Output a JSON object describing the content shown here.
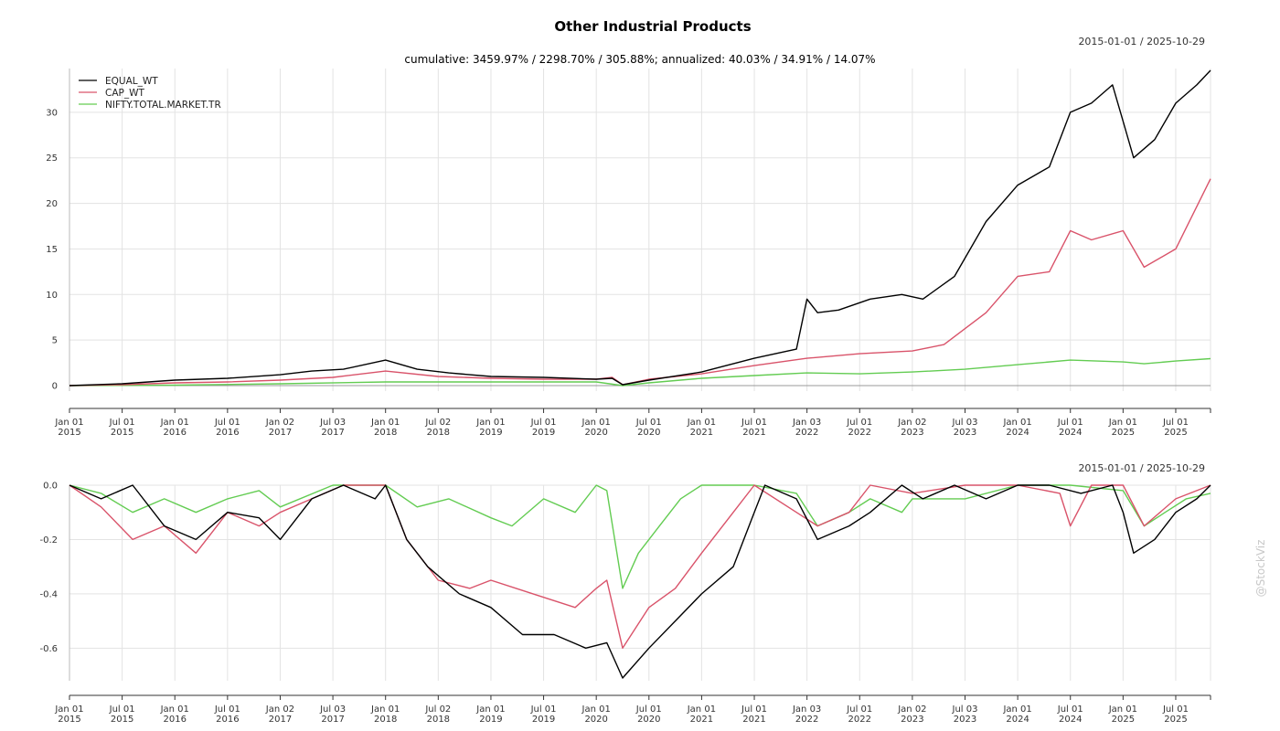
{
  "chart_data": {
    "type": "line",
    "title": "Other Industrial Products",
    "subtitle": "cumulative: 3459.97% / 2298.70% / 305.88%; annualized: 40.03% / 34.91% / 14.07%",
    "date_range": "2015-01-01 / 2025-10-29",
    "watermark": "@StockViz",
    "legend_position": "top-left",
    "grid": true,
    "x_ticks": [
      "Jan 01\n2015",
      "Jul 01\n2015",
      "Jan 01\n2016",
      "Jul 01\n2016",
      "Jan 02\n2017",
      "Jul 03\n2017",
      "Jan 01\n2018",
      "Jul 02\n2018",
      "Jan 01\n2019",
      "Jul 01\n2019",
      "Jan 01\n2020",
      "Jul 01\n2020",
      "Jan 01\n2021",
      "Jul 01\n2021",
      "Jan 03\n2022",
      "Jul 01\n2022",
      "Jan 02\n2023",
      "Jul 03\n2023",
      "Jan 01\n2024",
      "Jul 01\n2024",
      "Jan 01\n2025",
      "Jul 01\n2025"
    ],
    "x_range": [
      2015.0,
      2025.83
    ],
    "panels": [
      {
        "name": "cumulative",
        "ylim": [
          -0.6,
          34.8
        ],
        "y_ticks": [
          0,
          5,
          10,
          15,
          20,
          25,
          30
        ],
        "series": [
          {
            "name": "EQUAL_WT",
            "color": "#000000",
            "x": [
              2015.0,
              2015.5,
              2016.0,
              2016.5,
              2017.0,
              2017.3,
              2017.6,
              2018.0,
              2018.3,
              2018.6,
              2019.0,
              2019.5,
              2020.0,
              2020.15,
              2020.25,
              2020.5,
              2021.0,
              2021.5,
              2021.9,
              2022.0,
              2022.1,
              2022.3,
              2022.6,
              2022.9,
              2023.1,
              2023.4,
              2023.7,
              2024.0,
              2024.3,
              2024.5,
              2024.7,
              2024.9,
              2025.0,
              2025.1,
              2025.3,
              2025.5,
              2025.7,
              2025.83
            ],
            "y": [
              0,
              0.2,
              0.6,
              0.8,
              1.2,
              1.6,
              1.8,
              2.8,
              1.8,
              1.4,
              1.0,
              0.9,
              0.7,
              0.8,
              0.1,
              0.6,
              1.5,
              3.0,
              4.0,
              9.5,
              8.0,
              8.3,
              9.5,
              10.0,
              9.5,
              12.0,
              18.0,
              22.0,
              24.0,
              30.0,
              31.0,
              33.0,
              29.0,
              25.0,
              27.0,
              31.0,
              33.0,
              34.6
            ]
          },
          {
            "name": "CAP_WT",
            "color": "#d9536a",
            "x": [
              2015.0,
              2015.5,
              2016.0,
              2016.5,
              2017.0,
              2017.5,
              2018.0,
              2018.5,
              2019.0,
              2019.5,
              2020.0,
              2020.15,
              2020.25,
              2020.5,
              2021.0,
              2021.5,
              2022.0,
              2022.5,
              2023.0,
              2023.3,
              2023.7,
              2024.0,
              2024.3,
              2024.5,
              2024.7,
              2025.0,
              2025.2,
              2025.5,
              2025.83
            ],
            "y": [
              0,
              0.1,
              0.3,
              0.4,
              0.6,
              0.9,
              1.6,
              1.0,
              0.8,
              0.7,
              0.7,
              0.9,
              0.1,
              0.7,
              1.3,
              2.2,
              3.0,
              3.5,
              3.8,
              4.5,
              8.0,
              12.0,
              12.5,
              17.0,
              16.0,
              17.0,
              13.0,
              15.0,
              22.7
            ]
          },
          {
            "name": "NIFTY.TOTAL.MARKET.TR",
            "color": "#63cc52",
            "x": [
              2015.0,
              2016.0,
              2017.0,
              2018.0,
              2019.0,
              2020.0,
              2020.25,
              2020.5,
              2021.0,
              2021.5,
              2022.0,
              2022.5,
              2023.0,
              2023.5,
              2024.0,
              2024.5,
              2025.0,
              2025.2,
              2025.5,
              2025.83
            ],
            "y": [
              0,
              0.05,
              0.2,
              0.4,
              0.4,
              0.4,
              0.0,
              0.3,
              0.8,
              1.1,
              1.4,
              1.3,
              1.5,
              1.8,
              2.3,
              2.8,
              2.6,
              2.4,
              2.7,
              2.96
            ]
          }
        ]
      },
      {
        "name": "drawdown",
        "ylim": [
          -0.72,
          0.0
        ],
        "y_ticks": [
          0.0,
          -0.2,
          -0.4,
          -0.6
        ],
        "series": [
          {
            "name": "EQUAL_WT",
            "color": "#000000",
            "x": [
              2015.0,
              2015.3,
              2015.6,
              2015.9,
              2016.2,
              2016.5,
              2016.8,
              2017.0,
              2017.3,
              2017.6,
              2017.9,
              2018.0,
              2018.2,
              2018.4,
              2018.7,
              2019.0,
              2019.3,
              2019.6,
              2019.9,
              2020.1,
              2020.25,
              2020.5,
              2020.75,
              2021.0,
              2021.3,
              2021.5,
              2021.6,
              2021.9,
              2022.1,
              2022.4,
              2022.6,
              2022.9,
              2023.1,
              2023.4,
              2023.7,
              2024.0,
              2024.3,
              2024.6,
              2024.9,
              2025.0,
              2025.1,
              2025.3,
              2025.5,
              2025.7,
              2025.83
            ],
            "y": [
              0,
              -0.05,
              0,
              -0.15,
              -0.2,
              -0.1,
              -0.12,
              -0.2,
              -0.05,
              0,
              -0.05,
              0,
              -0.2,
              -0.3,
              -0.4,
              -0.45,
              -0.55,
              -0.55,
              -0.6,
              -0.58,
              -0.71,
              -0.6,
              -0.5,
              -0.4,
              -0.3,
              -0.1,
              0,
              -0.05,
              -0.2,
              -0.15,
              -0.1,
              0,
              -0.05,
              0,
              -0.05,
              0,
              0,
              -0.03,
              0,
              -0.1,
              -0.25,
              -0.2,
              -0.1,
              -0.05,
              0
            ]
          },
          {
            "name": "CAP_WT",
            "color": "#d9536a",
            "x": [
              2015.0,
              2015.3,
              2015.6,
              2015.9,
              2016.2,
              2016.5,
              2016.8,
              2017.0,
              2017.3,
              2017.6,
              2018.0,
              2018.2,
              2018.5,
              2018.8,
              2019.0,
              2019.4,
              2019.8,
              2020.0,
              2020.1,
              2020.25,
              2020.5,
              2020.75,
              2021.0,
              2021.3,
              2021.5,
              2021.9,
              2022.1,
              2022.4,
              2022.6,
              2023.0,
              2023.5,
              2024.0,
              2024.4,
              2024.5,
              2024.7,
              2025.0,
              2025.2,
              2025.5,
              2025.83
            ],
            "y": [
              0,
              -0.08,
              -0.2,
              -0.15,
              -0.25,
              -0.1,
              -0.15,
              -0.1,
              -0.05,
              0,
              0,
              -0.2,
              -0.35,
              -0.38,
              -0.35,
              -0.4,
              -0.45,
              -0.38,
              -0.35,
              -0.6,
              -0.45,
              -0.38,
              -0.25,
              -0.1,
              0,
              -0.1,
              -0.15,
              -0.1,
              0,
              -0.03,
              0,
              0,
              -0.03,
              -0.15,
              0,
              0,
              -0.15,
              -0.05,
              0
            ]
          },
          {
            "name": "NIFTY.TOTAL.MARKET.TR",
            "color": "#63cc52",
            "x": [
              2015.0,
              2015.3,
              2015.6,
              2015.9,
              2016.2,
              2016.5,
              2016.8,
              2017.0,
              2017.5,
              2018.0,
              2018.3,
              2018.6,
              2019.0,
              2019.2,
              2019.5,
              2019.8,
              2020.0,
              2020.1,
              2020.25,
              2020.4,
              2020.6,
              2020.8,
              2021.0,
              2021.5,
              2021.9,
              2022.1,
              2022.4,
              2022.6,
              2022.9,
              2023.0,
              2023.5,
              2024.0,
              2024.5,
              2025.0,
              2025.2,
              2025.4,
              2025.6,
              2025.83
            ],
            "y": [
              0,
              -0.03,
              -0.1,
              -0.05,
              -0.1,
              -0.05,
              -0.02,
              -0.08,
              0,
              0,
              -0.08,
              -0.05,
              -0.12,
              -0.15,
              -0.05,
              -0.1,
              0,
              -0.02,
              -0.38,
              -0.25,
              -0.15,
              -0.05,
              0,
              0,
              -0.03,
              -0.15,
              -0.1,
              -0.05,
              -0.1,
              -0.05,
              -0.05,
              0,
              0,
              -0.02,
              -0.15,
              -0.1,
              -0.05,
              -0.03
            ]
          }
        ]
      }
    ]
  }
}
